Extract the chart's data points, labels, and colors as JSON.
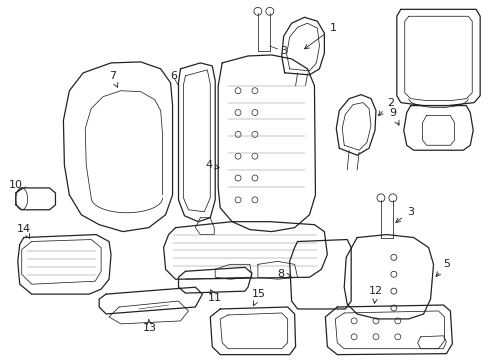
{
  "bg_color": "#ffffff",
  "line_color": "#222222",
  "figsize": [
    4.89,
    3.6
  ],
  "dpi": 100
}
